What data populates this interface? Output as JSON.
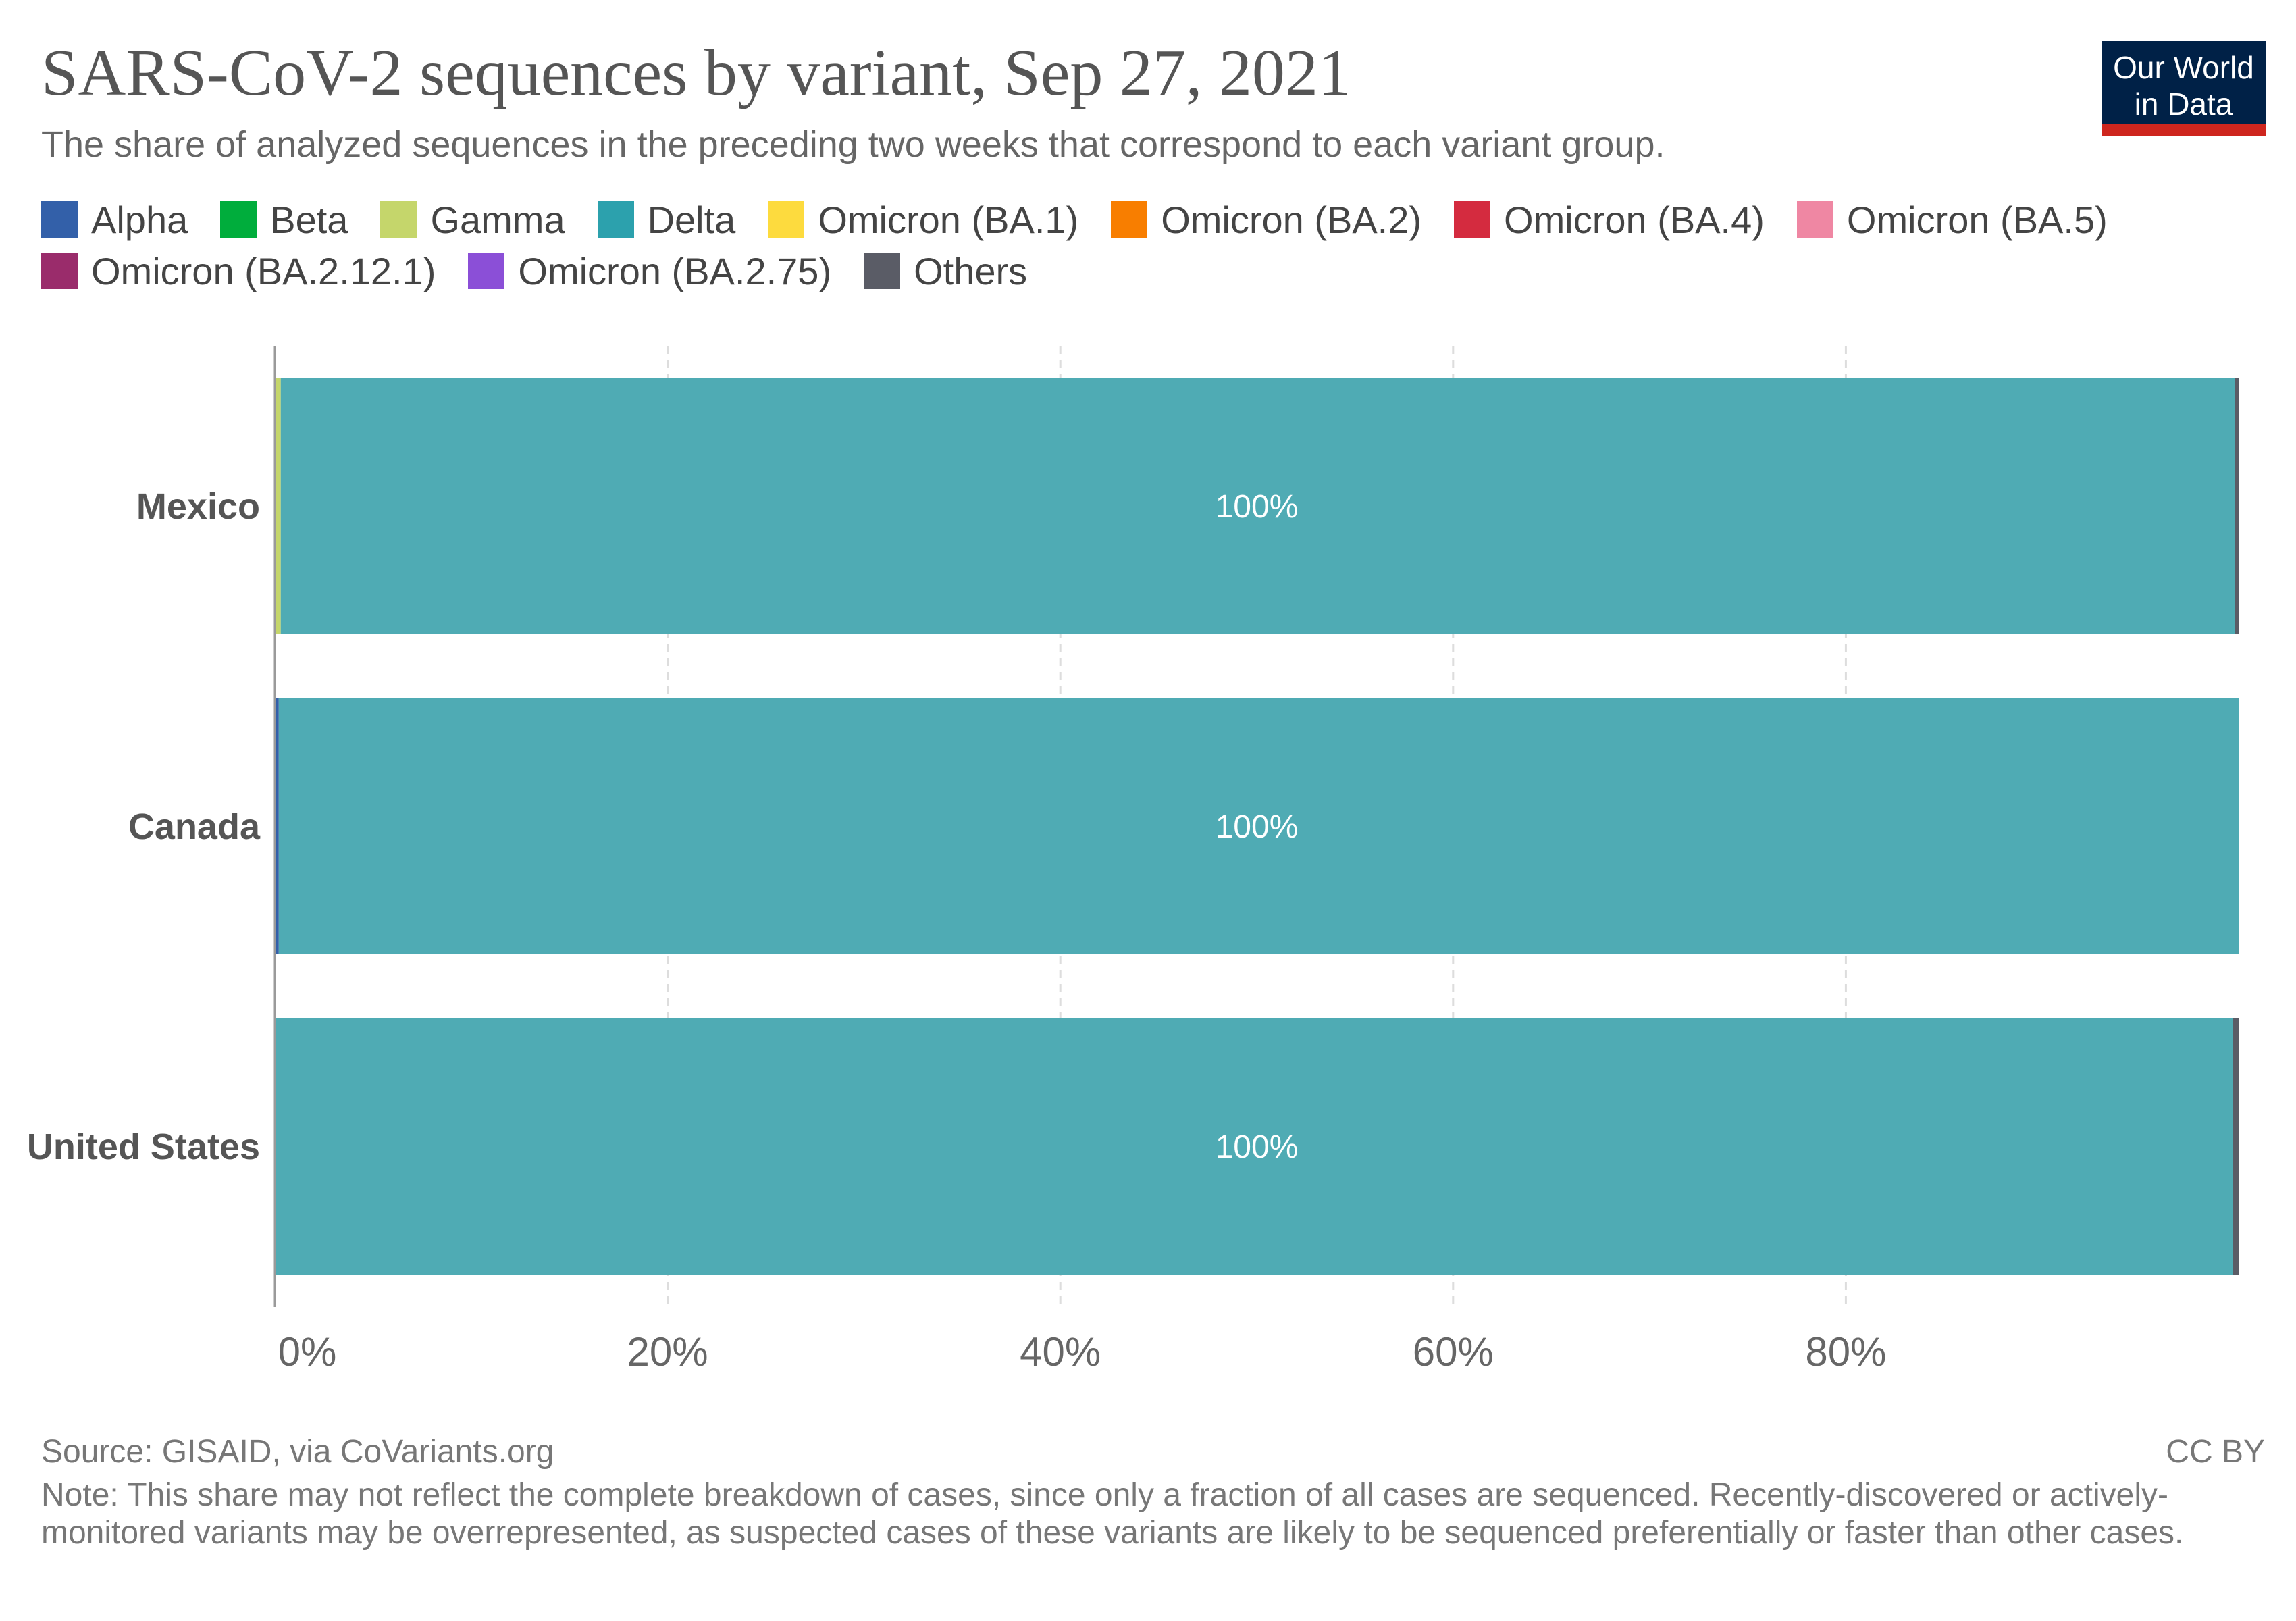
{
  "header": {
    "title": "SARS-CoV-2 sequences by variant, Sep 27, 2021",
    "subtitle": "The share of analyzed sequences in the preceding two weeks that correspond to each variant group.",
    "logo_line1": "Our World",
    "logo_line2": "in Data"
  },
  "legend": [
    {
      "label": "Alpha",
      "color": "#3360a9"
    },
    {
      "label": "Beta",
      "color": "#00ad3c"
    },
    {
      "label": "Gamma",
      "color": "#c5d66b"
    },
    {
      "label": "Delta",
      "color": "#2ca1ad"
    },
    {
      "label": "Omicron (BA.1)",
      "color": "#fddb3e"
    },
    {
      "label": "Omicron (BA.2)",
      "color": "#f87e00"
    },
    {
      "label": "Omicron (BA.4)",
      "color": "#d42b3f"
    },
    {
      "label": "Omicron (BA.5)",
      "color": "#ef87a3"
    },
    {
      "label": "Omicron (BA.2.12.1)",
      "color": "#9a2c6b"
    },
    {
      "label": "Omicron (BA.2.75)",
      "color": "#8b4fd7"
    },
    {
      "label": "Others",
      "color": "#5a5c66"
    }
  ],
  "chart_data": {
    "type": "bar",
    "orientation": "horizontal",
    "stacked": true,
    "title": "SARS-CoV-2 sequences by variant, Sep 27, 2021",
    "categories": [
      "Mexico",
      "Canada",
      "United States"
    ],
    "x_ticks": [
      "0%",
      "20%",
      "40%",
      "60%",
      "80%"
    ],
    "xlim": [
      0,
      100
    ],
    "grid": true,
    "legend_position": "top",
    "series": [
      {
        "name": "Alpha",
        "color": "#3360a9",
        "values": [
          0,
          0.2,
          0
        ]
      },
      {
        "name": "Beta",
        "color": "#00ad3c",
        "values": [
          0,
          0,
          0
        ]
      },
      {
        "name": "Gamma",
        "color": "#c5d66b",
        "values": [
          0.3,
          0,
          0
        ]
      },
      {
        "name": "Delta",
        "color": "#4fabb4",
        "values": [
          99.5,
          99.8,
          99.7
        ]
      },
      {
        "name": "Others",
        "color": "#5a5c66",
        "values": [
          0.2,
          0,
          0.3
        ]
      }
    ],
    "data_labels": [
      "100%",
      "100%",
      "100%"
    ]
  },
  "footer": {
    "source": "Source: GISAID, via CoVariants.org",
    "license": "CC BY",
    "note": "Note: This share may not reflect the complete breakdown of cases, since only a fraction of all cases are sequenced. Recently-discovered or actively-monitored variants may be overrepresented, as suspected cases of these variants are likely to be sequenced preferentially or faster than other cases."
  }
}
